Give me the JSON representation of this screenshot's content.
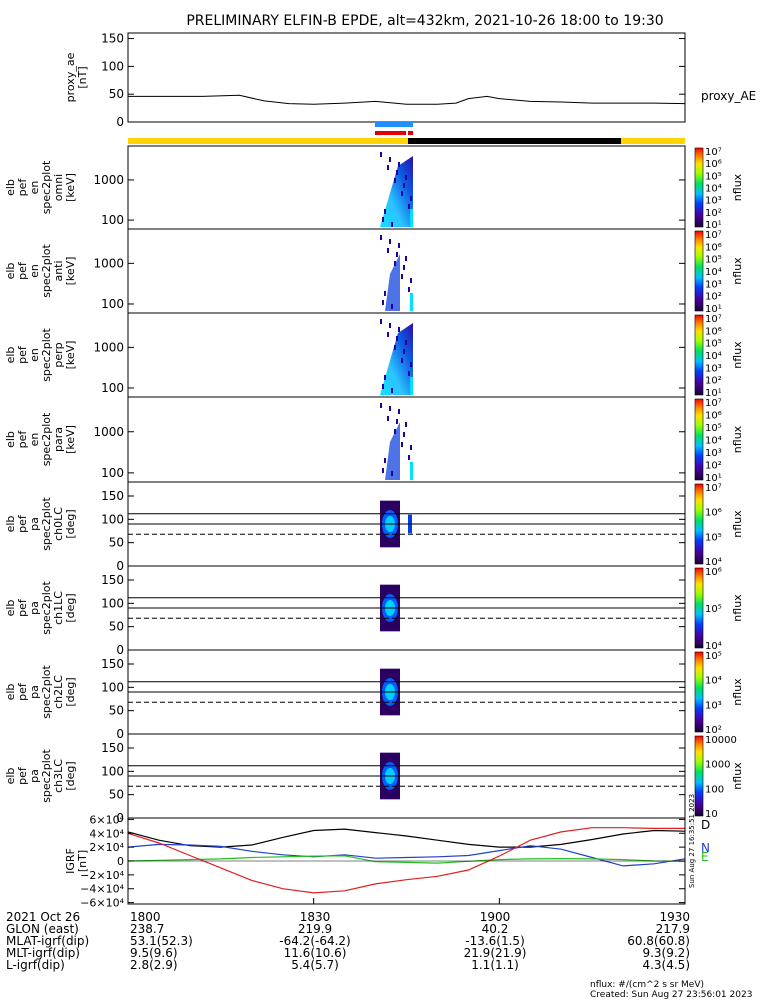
{
  "title": "PRELIMINARY ELFIN-B EPDE, alt=432km, 2021-10-26 18:00 to 19:30",
  "chart_data": [
    {
      "type": "line",
      "panel": "proxy_ae",
      "ylabel_lines": [
        "proxy_ae",
        "[nT]"
      ],
      "legend": "proxy_AE",
      "ylim": [
        0,
        160
      ],
      "yticks": [
        "0",
        "50",
        "100",
        "150"
      ],
      "ytick_values": [
        0,
        50,
        100,
        150
      ],
      "x": [
        1800,
        1805,
        1812,
        1818,
        1822,
        1826,
        1830,
        1835,
        1840,
        1845,
        1850,
        1853,
        1855,
        1858,
        1900,
        1905,
        1910,
        1915,
        1920,
        1925,
        1930
      ],
      "values": [
        46,
        46,
        46,
        48,
        38,
        33,
        32,
        34,
        37,
        32,
        32,
        34,
        42,
        46,
        42,
        37,
        36,
        34,
        34,
        34,
        33
      ]
    },
    {
      "type": "heatmap",
      "panel": "elb pef en spec2plot omni",
      "ylabel_lines": [
        "elb",
        "pef",
        "en",
        "spec2plot",
        "omni",
        "[keV]"
      ],
      "yticks": [
        "100",
        "1000"
      ],
      "ytick_values": [
        100,
        1000
      ],
      "zlabel": "nflux",
      "zticks": [
        "10¹",
        "10²",
        "10³",
        "10⁴",
        "10⁵",
        "10⁶",
        "10⁷"
      ],
      "ztick_values": [
        1,
        2,
        3,
        4,
        5,
        6,
        7
      ]
    },
    {
      "type": "heatmap",
      "panel": "elb pef en spec2plot anti",
      "ylabel_lines": [
        "elb",
        "pef",
        "en",
        "spec2plot",
        "anti",
        "[keV]"
      ],
      "yticks": [
        "100",
        "1000"
      ],
      "ytick_values": [
        100,
        1000
      ],
      "zlabel": "nflux",
      "zticks": [
        "10¹",
        "10²",
        "10³",
        "10⁴",
        "10⁵",
        "10⁶",
        "10⁷"
      ],
      "ztick_values": [
        1,
        2,
        3,
        4,
        5,
        6,
        7
      ]
    },
    {
      "type": "heatmap",
      "panel": "elb pef en spec2plot perp",
      "ylabel_lines": [
        "elb",
        "pef",
        "en",
        "spec2plot",
        "perp",
        "[keV]"
      ],
      "yticks": [
        "100",
        "1000"
      ],
      "ytick_values": [
        100,
        1000
      ],
      "zlabel": "nflux",
      "zticks": [
        "10¹",
        "10²",
        "10³",
        "10⁴",
        "10⁵",
        "10⁶",
        "10⁷"
      ],
      "ztick_values": [
        1,
        2,
        3,
        4,
        5,
        6,
        7
      ]
    },
    {
      "type": "heatmap",
      "panel": "elb pef en spec2plot para",
      "ylabel_lines": [
        "elb",
        "pef",
        "en",
        "spec2plot",
        "para",
        "[keV]"
      ],
      "yticks": [
        "100",
        "1000"
      ],
      "ytick_values": [
        100,
        1000
      ],
      "zlabel": "nflux",
      "zticks": [
        "10¹",
        "10²",
        "10³",
        "10⁴",
        "10⁵",
        "10⁶",
        "10⁷"
      ],
      "ztick_values": [
        1,
        2,
        3,
        4,
        5,
        6,
        7
      ]
    },
    {
      "type": "heatmap",
      "panel": "elb pef pa spec2plot ch0LC",
      "ylabel_lines": [
        "elb",
        "pef",
        "pa",
        "spec2plot",
        "ch0LC",
        "[deg]"
      ],
      "yticks": [
        "0",
        "50",
        "100",
        "150"
      ],
      "ytick_values": [
        0,
        50,
        100,
        150
      ],
      "zlabel": "nflux",
      "zticks": [
        "10⁴",
        "10⁵",
        "10⁶",
        "10⁷"
      ],
      "ztick_values": [
        4,
        5,
        6,
        7
      ]
    },
    {
      "type": "heatmap",
      "panel": "elb pef pa spec2plot ch1LC",
      "ylabel_lines": [
        "elb",
        "pef",
        "pa",
        "spec2plot",
        "ch1LC",
        "[deg]"
      ],
      "yticks": [
        "0",
        "50",
        "100",
        "150"
      ],
      "ytick_values": [
        0,
        50,
        100,
        150
      ],
      "zlabel": "nflux",
      "zticks": [
        "10⁴",
        "10⁵",
        "10⁶"
      ],
      "ztick_values": [
        4,
        5,
        6
      ]
    },
    {
      "type": "heatmap",
      "panel": "elb pef pa spec2plot ch2LC",
      "ylabel_lines": [
        "elb",
        "pef",
        "pa",
        "spec2plot",
        "ch2LC",
        "[deg]"
      ],
      "yticks": [
        "0",
        "50",
        "100",
        "150"
      ],
      "ytick_values": [
        0,
        50,
        100,
        150
      ],
      "zlabel": "nflux",
      "zticks": [
        "10²",
        "10³",
        "10⁴",
        "10⁵"
      ],
      "ztick_values": [
        2,
        3,
        4,
        5
      ]
    },
    {
      "type": "heatmap",
      "panel": "elb pef pa spec2plot ch3LC",
      "ylabel_lines": [
        "elb",
        "pef",
        "pa",
        "spec2plot",
        "ch3LC",
        "[deg]"
      ],
      "yticks": [
        "0",
        "50",
        "100",
        "150"
      ],
      "ytick_values": [
        0,
        50,
        100,
        150
      ],
      "zlabel": "nflux",
      "zticks": [
        "10",
        "100",
        "1000",
        "10000"
      ],
      "ztick_values": [
        1,
        2,
        3,
        4
      ]
    },
    {
      "type": "line",
      "panel": "IGRF",
      "ylabel_lines": [
        "IGRF",
        "[nT]"
      ],
      "ylim": [
        -62000,
        62000
      ],
      "yticks": [
        "6×10⁴",
        "4×10⁴",
        "2×10⁴",
        "0",
        "−2×10⁴",
        "−4×10⁴",
        "−6×10⁴"
      ],
      "ytick_values": [
        60000,
        40000,
        20000,
        0,
        -20000,
        -40000,
        -60000
      ],
      "x": [
        1800,
        1805,
        1810,
        1815,
        1820,
        1825,
        1830,
        1835,
        1840,
        1845,
        1850,
        1855,
        1900,
        1905,
        1910,
        1915,
        1920,
        1925,
        1930
      ],
      "series": [
        {
          "name": "D",
          "color": "#000000",
          "values": [
            42000,
            30000,
            22000,
            20000,
            23000,
            34000,
            44000,
            46000,
            41000,
            36000,
            30000,
            24000,
            20000,
            20000,
            24000,
            31000,
            39000,
            44000,
            43000
          ]
        },
        {
          "name": "N",
          "color": "#2040d0",
          "values": [
            20000,
            24000,
            23000,
            21000,
            14000,
            9000,
            6000,
            9000,
            4000,
            5000,
            6000,
            8000,
            15000,
            22000,
            17000,
            5000,
            -7000,
            -4000,
            3000
          ]
        },
        {
          "name": "E",
          "color": "#20c020",
          "values": [
            0,
            1000,
            2000,
            3000,
            5000,
            6000,
            7000,
            7500,
            -1000,
            -2000,
            -3000,
            -500,
            2000,
            3000,
            3500,
            3000,
            2000,
            0,
            -500
          ]
        },
        {
          "name": "",
          "color": "#e02020",
          "values": [
            40000,
            26000,
            8000,
            -10000,
            -28000,
            -40000,
            -46000,
            -43000,
            -33000,
            -27000,
            -22000,
            -13000,
            7000,
            30000,
            42000,
            48000,
            48000,
            47000,
            47000
          ]
        }
      ]
    }
  ],
  "time_axis": {
    "ticks": [
      "1800",
      "1830",
      "1900",
      "1930"
    ],
    "rows": [
      {
        "label": "2021 Oct 26",
        "values": [
          "1800",
          "1830",
          "1900",
          "1930"
        ]
      },
      {
        "label": "GLON (east)",
        "values": [
          "238.7",
          "219.9",
          "40.2",
          "217.9"
        ]
      },
      {
        "label": "MLAT-igrf(dip)",
        "values": [
          "53.1(52.3)",
          "-64.2(-64.2)",
          "-13.6(1.5)",
          "60.8(60.8)"
        ]
      },
      {
        "label": "MLT-igrf(dip)",
        "values": [
          "9.5(9.6)",
          "11.6(10.6)",
          "21.9(21.9)",
          "9.3(9.2)"
        ]
      },
      {
        "label": "L-igrf(dip)",
        "values": [
          "2.8(2.9)",
          "5.4(5.7)",
          "1.1(1.1)",
          "4.3(4.5)"
        ]
      }
    ]
  },
  "footer": {
    "units": "nflux: #/(cm^2 s sr MeV)",
    "created": "Created: Sun Aug 27 23:56:01 2023",
    "side_stamp": "Sun Aug 27 16:35:51 2023"
  }
}
